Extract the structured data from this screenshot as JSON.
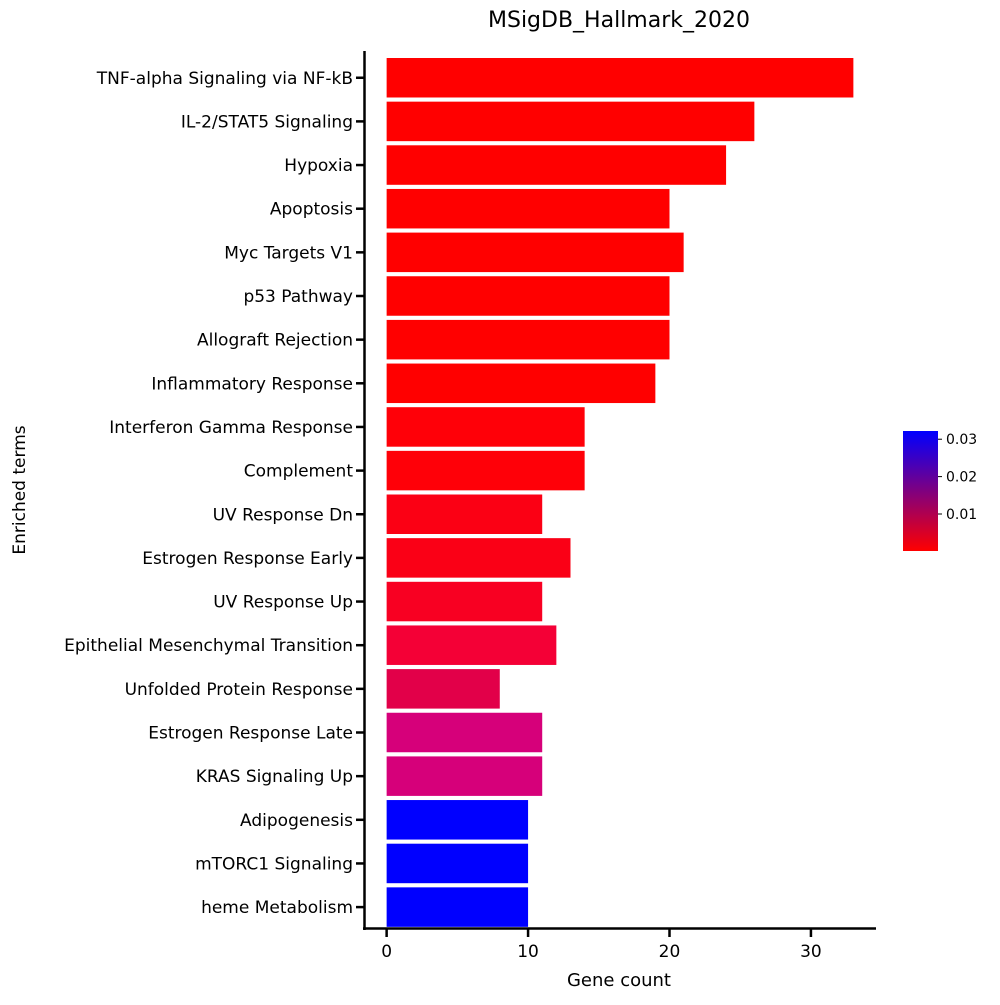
{
  "chart_data": {
    "type": "bar",
    "orientation": "horizontal",
    "title": "MSigDB_Hallmark_2020",
    "xlabel": "Gene count",
    "ylabel": "Enriched terms",
    "xlim": [
      -1.6,
      34.6
    ],
    "xticks": [
      0,
      10,
      20,
      30
    ],
    "grid": false,
    "categories": [
      "TNF-alpha Signaling via NF-kB",
      "IL-2/STAT5 Signaling",
      "Hypoxia",
      "Apoptosis",
      "Myc Targets V1",
      "p53 Pathway",
      "Allograft Rejection",
      "Inflammatory Response",
      "Interferon Gamma Response",
      "Complement",
      "UV Response Dn",
      "Estrogen Response Early",
      "UV Response Up",
      "Epithelial Mesenchymal Transition",
      "Unfolded Protein Response",
      "Estrogen Response Late",
      "KRAS Signaling Up",
      "Adipogenesis",
      "mTORC1 Signaling",
      "heme Metabolism"
    ],
    "values": [
      33,
      26,
      24,
      20,
      21,
      20,
      20,
      19,
      14,
      14,
      11,
      13,
      11,
      12,
      8,
      11,
      11,
      10,
      10,
      10
    ],
    "bar_colors": [
      "#ff0000",
      "#ff0000",
      "#ff0000",
      "#ff0000",
      "#ff0000",
      "#ff0000",
      "#ff0000",
      "#ff0000",
      "#ff0008",
      "#ff0008",
      "#fb0014",
      "#fa0016",
      "#f80022",
      "#f40036",
      "#e20049",
      "#d6007a",
      "#d6007a",
      "#0000ff",
      "#0000ff",
      "#0000ff"
    ],
    "colorbar": {
      "colors": [
        "#ff0000",
        "#0000ff"
      ],
      "ticks": [
        0.01,
        0.02,
        0.03
      ],
      "tick_labels": [
        "0.01",
        "0.02",
        "0.03"
      ],
      "range": [
        0.0001,
        0.0322
      ],
      "placement": "right"
    }
  }
}
